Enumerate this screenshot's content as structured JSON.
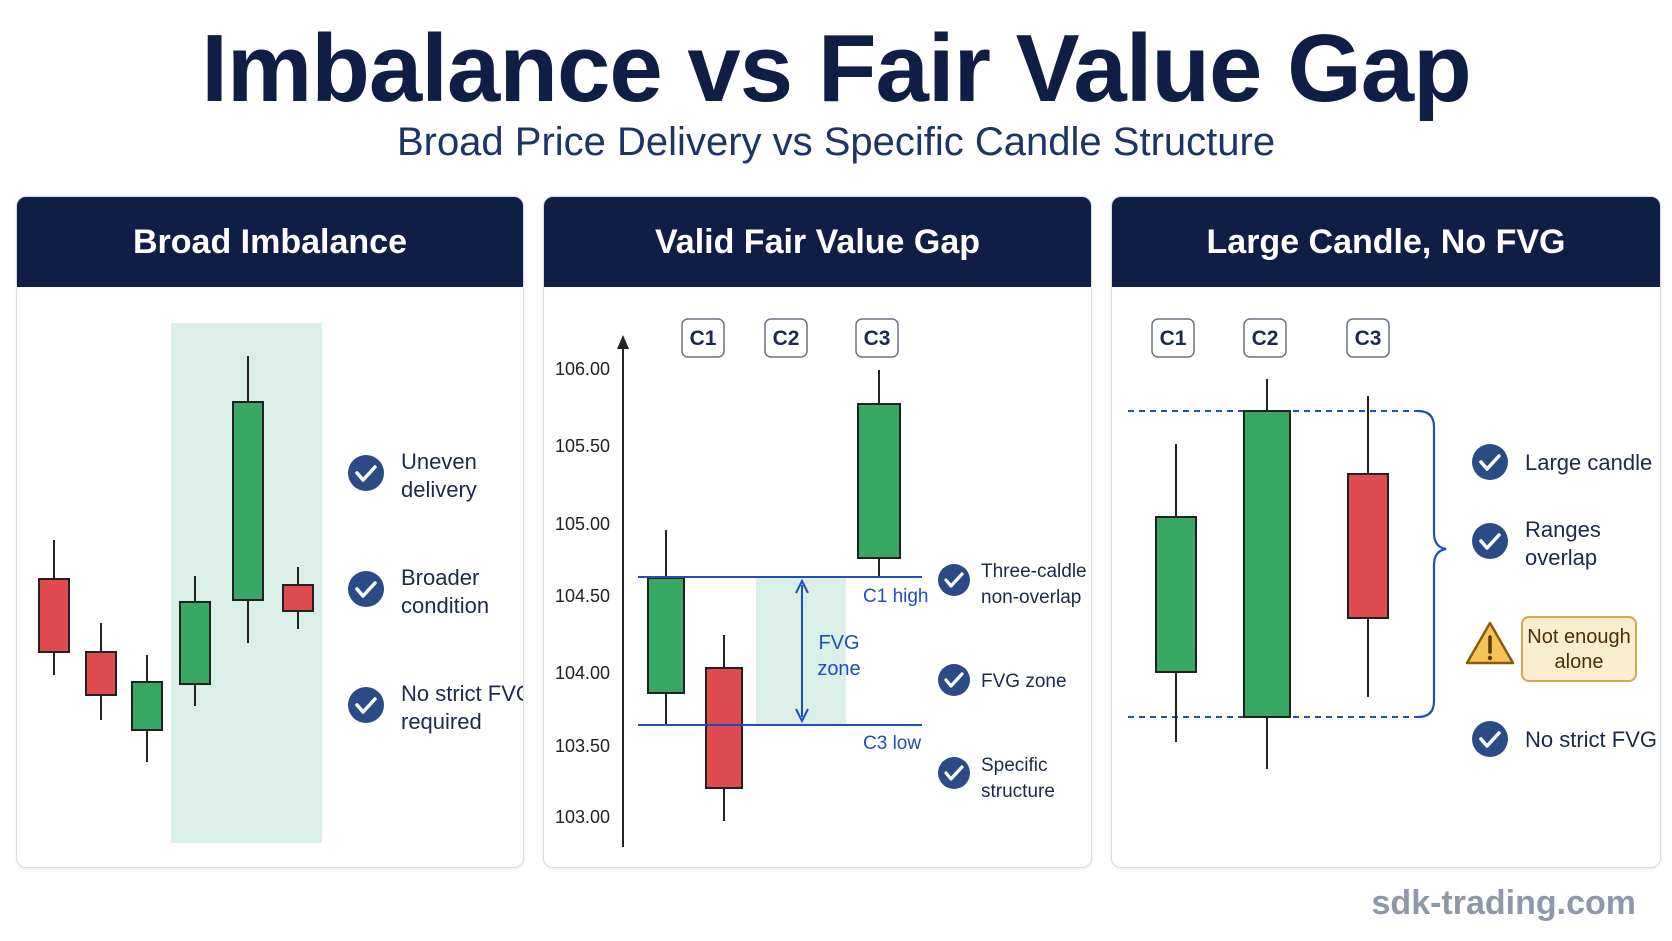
{
  "header": {
    "title": "Imbalance vs Fair Value Gap",
    "subtitle": "Broad Price Delivery vs Specific Candle Structure"
  },
  "colors": {
    "navy": "#0f1e45",
    "bullish": "#3aa865",
    "bearish": "#e04b4f",
    "zone": "#d9efe8",
    "accent_blue": "#1f4fbf",
    "check_circle": "#2c4a85",
    "warning_bg": "#fbeed0",
    "warning_border": "#d8a54a"
  },
  "panels": [
    {
      "title": "Broad Imbalance",
      "checks": [
        {
          "line1": "Uneven",
          "line2": "delivery",
          "icon": "check-icon"
        },
        {
          "line1": "Broader",
          "line2": "condition",
          "icon": "check-icon"
        },
        {
          "line1": "No strict FVG",
          "line2": "required",
          "icon": "check-icon"
        }
      ]
    },
    {
      "title": "Valid Fair Value Gap",
      "candle_labels": [
        "C1",
        "C2",
        "C3"
      ],
      "y_ticks": [
        "106.00",
        "105.50",
        "105.00",
        "104.50",
        "104.00",
        "103.50",
        "103.00"
      ],
      "line_labels": {
        "c1_high": "C1 high",
        "c3_low": "C3 low"
      },
      "zone_label": {
        "line1": "FVG",
        "line2": "zone"
      },
      "checks": [
        {
          "line1": "Three-caldle",
          "line2": "non-overlap",
          "icon": "check-icon"
        },
        {
          "line1": "FVG zone",
          "line2": "",
          "icon": "check-icon"
        },
        {
          "line1": "Specific",
          "line2": "structure",
          "icon": "check-icon"
        }
      ]
    },
    {
      "title": "Large Candle, No FVG",
      "candle_labels": [
        "C1",
        "C2",
        "C3"
      ],
      "checks": [
        {
          "line1": "Large candle",
          "line2": "",
          "icon": "check-icon"
        },
        {
          "line1": "Ranges",
          "line2": "overlap",
          "icon": "check-icon"
        },
        {
          "line1": "No strict FVG",
          "line2": "",
          "icon": "check-icon"
        }
      ],
      "warning": {
        "line1": "Not enough",
        "line2": "alone",
        "icon": "warning-icon"
      }
    }
  ],
  "footer": {
    "site": "sdk-trading.com"
  }
}
